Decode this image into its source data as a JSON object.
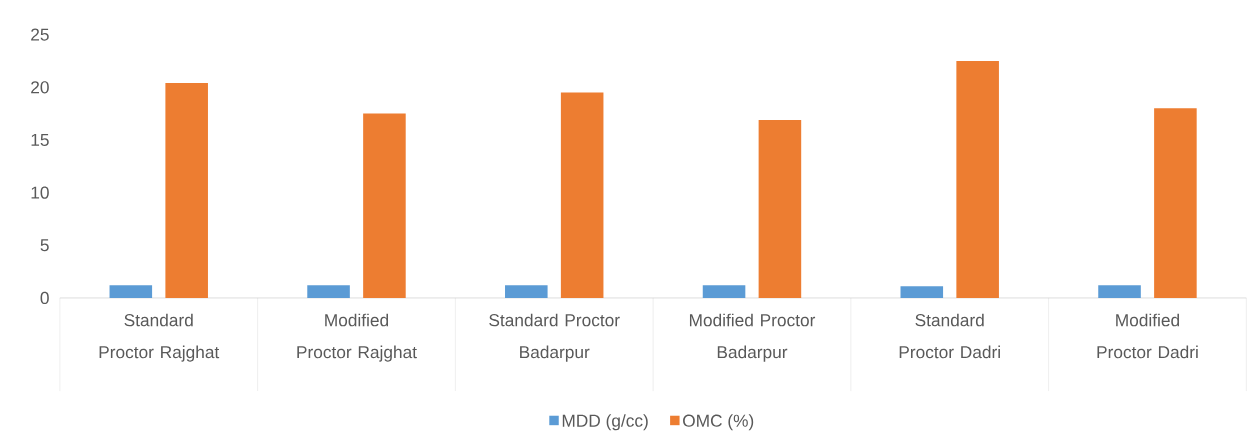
{
  "chart_data": {
    "type": "bar",
    "categories": [
      "Standard Proctor Rajghat",
      "Modified Proctor Rajghat",
      "Standard Proctor Badarpur",
      "Modified Proctor Badarpur",
      "Standard Proctor Dadri",
      "Modified Proctor Dadri"
    ],
    "series": [
      {
        "name": "MDD (g/cc)",
        "color": "#5b9bd5",
        "values": [
          1.2,
          1.2,
          1.2,
          1.2,
          1.1,
          1.2
        ]
      },
      {
        "name": "OMC (%)",
        "color": "#ed7d31",
        "values": [
          20.4,
          17.5,
          19.5,
          16.9,
          22.5,
          18.0
        ]
      }
    ],
    "ylim": [
      0,
      25
    ],
    "yticks": [
      0,
      5,
      10,
      15,
      20,
      25
    ],
    "grid": false,
    "legend": "bottom"
  }
}
